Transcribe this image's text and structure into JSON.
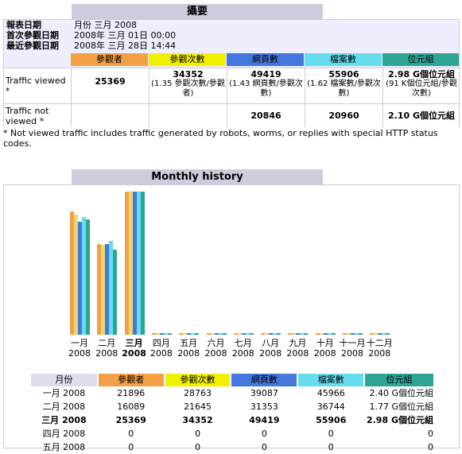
{
  "summary": {
    "title": "攝要",
    "report_date_label": "報表日期",
    "report_date_value": "月份 三月 2008",
    "first_visit_label": "首次參觀日期",
    "first_visit_value": "2008年 三月 01日 00:00",
    "last_visit_label": "最近參觀日期",
    "last_visit_value": "2008年 三月 28日 14:44",
    "headers": [
      "參觀者",
      "參觀次數",
      "網頁數",
      "檔案數",
      "位元組"
    ],
    "viewed_label": "Traffic viewed *",
    "viewed": {
      "visitors": "25369",
      "visits": "34352",
      "visits_sub": "(1.35 參觀次數/參觀者)",
      "pages": "49419",
      "pages_sub": "(1.43 網頁數/參觀次數)",
      "hits": "55906",
      "hits_sub": "(1.62 檔案數/參觀次數)",
      "bytes": "2.98 G個位元組",
      "bytes_sub": "(91 K個位元組/參觀次數)"
    },
    "not_viewed_label": "Traffic not viewed *",
    "not_viewed": {
      "pages": "20846",
      "hits": "20960",
      "bytes": "2.10 G個位元組"
    },
    "footnote": "* Not viewed traffic includes traffic generated by robots, worms, or replies with special HTTP status codes."
  },
  "history": {
    "title": "Monthly history",
    "months": [
      "一月",
      "二月",
      "三月",
      "四月",
      "五月",
      "六月",
      "七月",
      "八月",
      "九月",
      "十月",
      "十一月",
      "十二月"
    ],
    "year": "2008",
    "current_index": 2,
    "table_headers": [
      "月份",
      "參觀者",
      "參觀次數",
      "網頁數",
      "檔案數",
      "位元組"
    ],
    "rows": [
      {
        "month": "一月 2008",
        "visitors": "21896",
        "visits": "28763",
        "pages": "39087",
        "hits": "45966",
        "bytes": "2.40 G個位元組",
        "current": false
      },
      {
        "month": "二月 2008",
        "visitors": "16089",
        "visits": "21645",
        "pages": "31353",
        "hits": "36744",
        "bytes": "1.77 G個位元組",
        "current": false
      },
      {
        "month": "三月 2008",
        "visitors": "25369",
        "visits": "34352",
        "pages": "49419",
        "hits": "55906",
        "bytes": "2.98 G個位元組",
        "current": true
      },
      {
        "month": "四月 2008",
        "visitors": "0",
        "visits": "0",
        "pages": "0",
        "hits": "0",
        "bytes": "0",
        "current": false
      },
      {
        "month": "五月 2008",
        "visitors": "0",
        "visits": "0",
        "pages": "0",
        "hits": "0",
        "bytes": "0",
        "current": false
      }
    ],
    "colors": {
      "visitors": "#f4a046",
      "visits": "#e8d870",
      "pages": "#4477dd",
      "hits": "#66ddee",
      "bytes": "#2ea495"
    }
  },
  "chart_data": {
    "type": "bar",
    "categories": [
      "一月",
      "二月",
      "三月",
      "四月",
      "五月",
      "六月",
      "七月",
      "八月",
      "九月",
      "十月",
      "十一月",
      "十二月"
    ],
    "series": [
      {
        "name": "參觀者",
        "values": [
          21896,
          16089,
          25369,
          0,
          0,
          0,
          0,
          0,
          0,
          0,
          0,
          0
        ]
      },
      {
        "name": "參觀次數",
        "values": [
          28763,
          21645,
          34352,
          0,
          0,
          0,
          0,
          0,
          0,
          0,
          0,
          0
        ]
      },
      {
        "name": "網頁數",
        "values": [
          39087,
          31353,
          49419,
          0,
          0,
          0,
          0,
          0,
          0,
          0,
          0,
          0
        ]
      },
      {
        "name": "檔案數",
        "values": [
          45966,
          36744,
          55906,
          0,
          0,
          0,
          0,
          0,
          0,
          0,
          0,
          0
        ]
      },
      {
        "name": "位元組",
        "values": [
          2.4,
          1.77,
          2.98,
          0,
          0,
          0,
          0,
          0,
          0,
          0,
          0,
          0
        ]
      }
    ]
  }
}
